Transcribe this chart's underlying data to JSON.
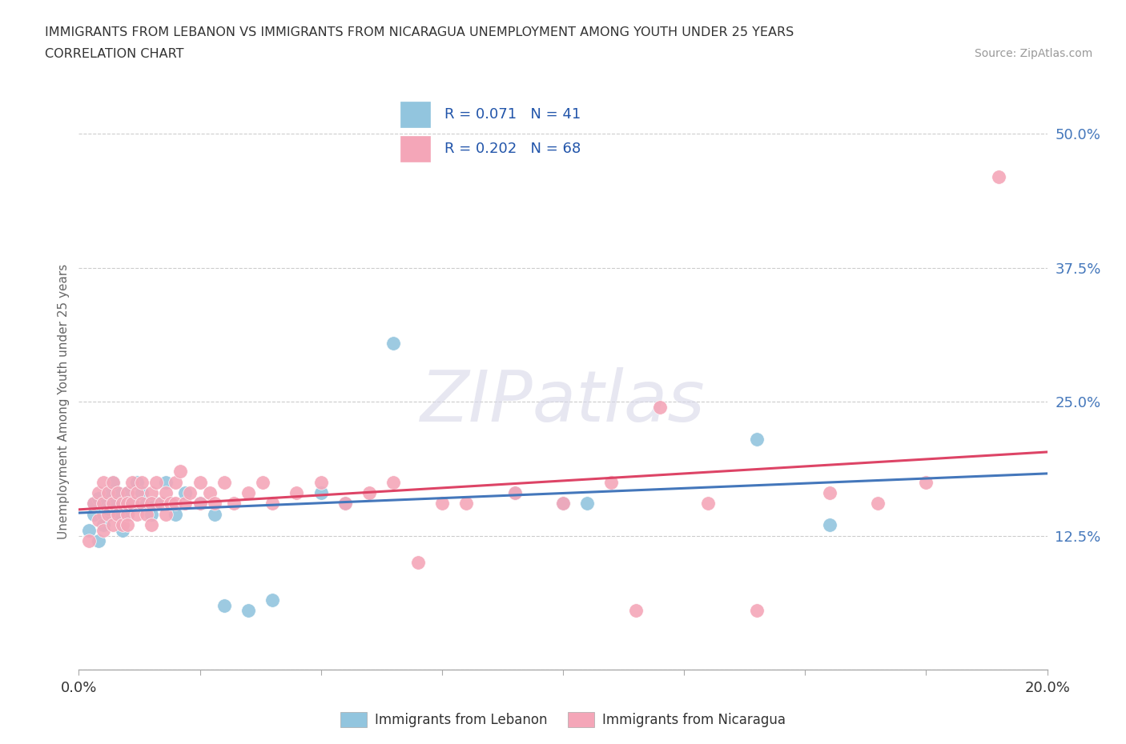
{
  "title": "IMMIGRANTS FROM LEBANON VS IMMIGRANTS FROM NICARAGUA UNEMPLOYMENT AMONG YOUTH UNDER 25 YEARS",
  "subtitle": "CORRELATION CHART",
  "source": "Source: ZipAtlas.com",
  "ylabel": "Unemployment Among Youth under 25 years",
  "xlim": [
    0.0,
    0.2
  ],
  "ylim": [
    0.0,
    0.5
  ],
  "xticks": [
    0.0,
    0.025,
    0.05,
    0.075,
    0.1,
    0.125,
    0.15,
    0.175,
    0.2
  ],
  "yticks": [
    0.0,
    0.125,
    0.25,
    0.375,
    0.5
  ],
  "ytick_labels": [
    "",
    "12.5%",
    "25.0%",
    "37.5%",
    "50.0%"
  ],
  "lebanon_R": 0.071,
  "lebanon_N": 41,
  "nicaragua_R": 0.202,
  "nicaragua_N": 68,
  "lebanon_color": "#92c5de",
  "nicaragua_color": "#f4a6b8",
  "lebanon_line_color": "#4477bb",
  "nicaragua_line_color": "#dd4466",
  "lebanon_x": [
    0.002,
    0.003,
    0.003,
    0.004,
    0.004,
    0.005,
    0.005,
    0.005,
    0.006,
    0.006,
    0.007,
    0.007,
    0.008,
    0.008,
    0.009,
    0.009,
    0.01,
    0.01,
    0.01,
    0.011,
    0.012,
    0.013,
    0.014,
    0.015,
    0.016,
    0.018,
    0.02,
    0.022,
    0.025,
    0.028,
    0.03,
    0.035,
    0.04,
    0.05,
    0.055,
    0.065,
    0.09,
    0.1,
    0.105,
    0.14,
    0.155
  ],
  "lebanon_y": [
    0.13,
    0.155,
    0.145,
    0.16,
    0.12,
    0.145,
    0.135,
    0.155,
    0.15,
    0.165,
    0.155,
    0.175,
    0.145,
    0.165,
    0.155,
    0.13,
    0.145,
    0.155,
    0.165,
    0.155,
    0.175,
    0.165,
    0.155,
    0.145,
    0.155,
    0.175,
    0.145,
    0.165,
    0.155,
    0.145,
    0.06,
    0.055,
    0.065,
    0.165,
    0.155,
    0.305,
    0.165,
    0.155,
    0.155,
    0.215,
    0.135
  ],
  "nicaragua_x": [
    0.002,
    0.003,
    0.004,
    0.004,
    0.005,
    0.005,
    0.005,
    0.006,
    0.006,
    0.007,
    0.007,
    0.007,
    0.008,
    0.008,
    0.009,
    0.009,
    0.01,
    0.01,
    0.01,
    0.01,
    0.011,
    0.011,
    0.012,
    0.012,
    0.013,
    0.013,
    0.014,
    0.015,
    0.015,
    0.015,
    0.016,
    0.017,
    0.018,
    0.018,
    0.019,
    0.02,
    0.02,
    0.021,
    0.022,
    0.023,
    0.025,
    0.025,
    0.027,
    0.028,
    0.03,
    0.032,
    0.035,
    0.038,
    0.04,
    0.045,
    0.05,
    0.055,
    0.06,
    0.065,
    0.07,
    0.075,
    0.08,
    0.09,
    0.1,
    0.11,
    0.115,
    0.12,
    0.13,
    0.14,
    0.155,
    0.165,
    0.175,
    0.19
  ],
  "nicaragua_y": [
    0.12,
    0.155,
    0.14,
    0.165,
    0.13,
    0.155,
    0.175,
    0.145,
    0.165,
    0.135,
    0.155,
    0.175,
    0.145,
    0.165,
    0.135,
    0.155,
    0.145,
    0.165,
    0.135,
    0.155,
    0.175,
    0.155,
    0.165,
    0.145,
    0.155,
    0.175,
    0.145,
    0.165,
    0.135,
    0.155,
    0.175,
    0.155,
    0.165,
    0.145,
    0.155,
    0.175,
    0.155,
    0.185,
    0.155,
    0.165,
    0.175,
    0.155,
    0.165,
    0.155,
    0.175,
    0.155,
    0.165,
    0.175,
    0.155,
    0.165,
    0.175,
    0.155,
    0.165,
    0.175,
    0.1,
    0.155,
    0.155,
    0.165,
    0.155,
    0.175,
    0.055,
    0.245,
    0.155,
    0.055,
    0.165,
    0.155,
    0.175,
    0.46
  ],
  "watermark_text": "ZIPatlas",
  "background_color": "#ffffff"
}
